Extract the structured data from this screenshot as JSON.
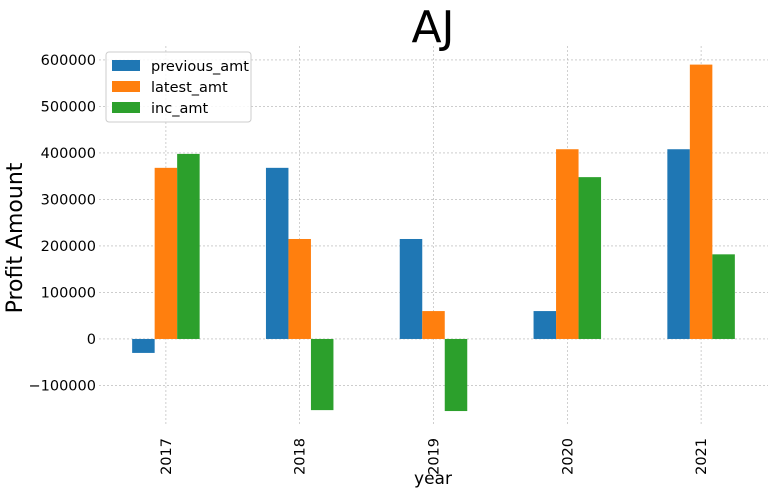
{
  "chart_data": {
    "type": "bar",
    "title": "AJ",
    "xlabel": "year",
    "ylabel": "Profit Amount",
    "categories": [
      "2017",
      "2018",
      "2019",
      "2020",
      "2021"
    ],
    "series": [
      {
        "name": "previous_amt",
        "color": "#1f77b4",
        "values": [
          -30000,
          368000,
          215000,
          60000,
          408000
        ]
      },
      {
        "name": "latest_amt",
        "color": "#ff7f0e",
        "values": [
          368000,
          215000,
          60000,
          408000,
          590000
        ]
      },
      {
        "name": "inc_amt",
        "color": "#2ca02c",
        "values": [
          398000,
          -153000,
          -155000,
          348000,
          182000
        ]
      }
    ],
    "yticks": [
      -100000,
      0,
      100000,
      200000,
      300000,
      400000,
      500000,
      600000
    ],
    "ytick_labels": [
      "−100000",
      "0",
      "100000",
      "200000",
      "300000",
      "400000",
      "500000",
      "600000"
    ],
    "ylim": [
      -185000,
      630000
    ],
    "grid": true,
    "legend_position": "top-left",
    "x_tick_rotation": "vertical"
  }
}
